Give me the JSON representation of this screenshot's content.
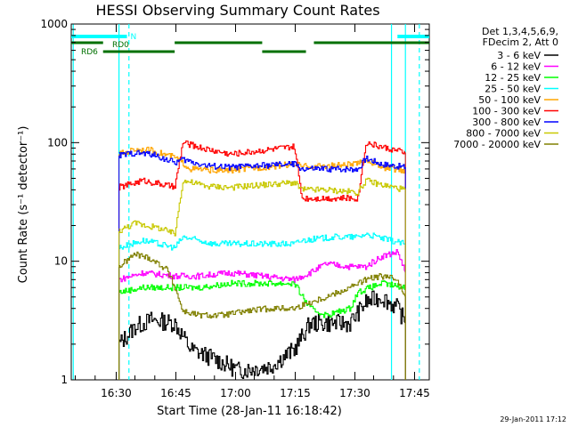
{
  "chart_data": {
    "type": "line",
    "title": "HESSI Observing Summary Count Rates",
    "xlabel": "Start Time (28-Jan-11 16:18:42)",
    "ylabel": "Count Rate (s⁻¹ detector⁻¹)",
    "yscale": "log",
    "ylim": [
      1,
      1000
    ],
    "xlim_minutes_from_start": [
      0,
      90
    ],
    "x_ticks": [
      {
        "label": "16:30",
        "minutes": 11.3
      },
      {
        "label": "16:45",
        "minutes": 26.3
      },
      {
        "label": "17:00",
        "minutes": 41.3
      },
      {
        "label": "17:15",
        "minutes": 56.3
      },
      {
        "label": "17:30",
        "minutes": 71.3
      },
      {
        "label": "17:45",
        "minutes": 86.3
      }
    ],
    "y_ticks": [
      {
        "label": "1",
        "value": 1
      },
      {
        "label": "10",
        "value": 10
      },
      {
        "label": "100",
        "value": 100
      },
      {
        "label": "1000",
        "value": 1000
      }
    ],
    "legend": {
      "header": [
        "Det 1,3,4,5,6,9,",
        "FDecim 2, Att 0"
      ],
      "placement": "right"
    },
    "series": [
      {
        "name": "3 - 6 keV",
        "color": "#000000",
        "segments": [
          [
            [
              12,
              2
            ],
            [
              16,
              2.8
            ],
            [
              20,
              3.2
            ],
            [
              26,
              3
            ],
            [
              30,
              1.8
            ],
            [
              36,
              1.5
            ],
            [
              42,
              1.2
            ],
            [
              50,
              1.3
            ],
            [
              56,
              1.8
            ],
            [
              60,
              3
            ],
            [
              64,
              3
            ],
            [
              70,
              3
            ],
            [
              74,
              4.5
            ],
            [
              78,
              5
            ],
            [
              82,
              4
            ],
            [
              84,
              3
            ]
          ]
        ]
      },
      {
        "name": "6 - 12 keV",
        "color": "#ff00ff",
        "segments": [
          [
            [
              12,
              7
            ],
            [
              18,
              8
            ],
            [
              26,
              7.5
            ],
            [
              32,
              7.5
            ],
            [
              40,
              8
            ],
            [
              48,
              7.5
            ],
            [
              56,
              7
            ],
            [
              60,
              8
            ],
            [
              64,
              9.5
            ],
            [
              70,
              9
            ],
            [
              74,
              9
            ],
            [
              78,
              11
            ],
            [
              82,
              12
            ],
            [
              84,
              8
            ]
          ]
        ]
      },
      {
        "name": "12 - 25 keV",
        "color": "#00ff00",
        "segments": [
          [
            [
              12,
              5.5
            ],
            [
              18,
              6
            ],
            [
              26,
              6
            ],
            [
              32,
              6
            ],
            [
              40,
              6.5
            ],
            [
              48,
              6.5
            ],
            [
              56,
              6.5
            ],
            [
              60,
              4
            ],
            [
              64,
              3.5
            ],
            [
              70,
              4
            ],
            [
              72,
              5.5
            ],
            [
              78,
              6.5
            ],
            [
              84,
              6
            ]
          ]
        ]
      },
      {
        "name": "25 - 50 keV",
        "color": "#00ffff",
        "segments": [
          [
            [
              12,
              13
            ],
            [
              18,
              15
            ],
            [
              26,
              13
            ],
            [
              28,
              16
            ],
            [
              36,
              14
            ],
            [
              44,
              14
            ],
            [
              56,
              14
            ],
            [
              58,
              15
            ],
            [
              66,
              16
            ],
            [
              72,
              16
            ],
            [
              74,
              17
            ],
            [
              80,
              15
            ],
            [
              84,
              14
            ]
          ]
        ]
      },
      {
        "name": "50 - 100 keV",
        "color": "#ffa500",
        "segments": [
          [
            [
              12,
              80
            ],
            [
              16,
              88
            ],
            [
              20,
              86
            ],
            [
              26,
              75
            ],
            [
              30,
              60
            ],
            [
              38,
              58
            ],
            [
              44,
              60
            ],
            [
              56,
              66
            ],
            [
              58,
              63
            ],
            [
              66,
              64
            ],
            [
              72,
              66
            ],
            [
              74,
              72
            ],
            [
              78,
              62
            ],
            [
              84,
              58
            ]
          ]
        ]
      },
      {
        "name": "100 - 300 keV",
        "color": "#ff0000",
        "segments": [
          [
            [
              12,
              42
            ],
            [
              18,
              48
            ],
            [
              22,
              45
            ],
            [
              26,
              42
            ],
            [
              28,
              100
            ],
            [
              34,
              88
            ],
            [
              40,
              80
            ],
            [
              48,
              86
            ],
            [
              56,
              92
            ],
            [
              58,
              34
            ],
            [
              64,
              34
            ],
            [
              72,
              34
            ],
            [
              74,
              100
            ],
            [
              78,
              92
            ],
            [
              84,
              82
            ]
          ]
        ]
      },
      {
        "name": "300 - 800 keV",
        "color": "#0000ff",
        "segments": [
          [
            [
              12,
              78
            ],
            [
              16,
              82
            ],
            [
              20,
              80
            ],
            [
              26,
              68
            ],
            [
              28,
              72
            ],
            [
              34,
              64
            ],
            [
              40,
              62
            ],
            [
              48,
              64
            ],
            [
              56,
              66
            ],
            [
              58,
              60
            ],
            [
              64,
              60
            ],
            [
              72,
              60
            ],
            [
              74,
              74
            ],
            [
              78,
              66
            ],
            [
              84,
              62
            ]
          ]
        ]
      },
      {
        "name": "800 - 7000 keV",
        "color": "#c8c800",
        "segments": [
          [
            [
              12,
              18
            ],
            [
              16,
              21
            ],
            [
              22,
              19
            ],
            [
              26,
              17
            ],
            [
              28,
              48
            ],
            [
              34,
              43
            ],
            [
              40,
              42
            ],
            [
              48,
              44
            ],
            [
              56,
              46
            ],
            [
              58,
              40
            ],
            [
              64,
              40
            ],
            [
              72,
              38
            ],
            [
              74,
              48
            ],
            [
              78,
              44
            ],
            [
              84,
              40
            ]
          ]
        ]
      },
      {
        "name": "7000 - 20000 keV",
        "color": "#808000",
        "segments": [
          [
            [
              12,
              9
            ],
            [
              16,
              11.5
            ],
            [
              20,
              10.5
            ],
            [
              24,
              8.5
            ],
            [
              26,
              6
            ],
            [
              28,
              3.8
            ],
            [
              32,
              3.5
            ],
            [
              38,
              3.5
            ],
            [
              44,
              3.8
            ],
            [
              50,
              4
            ],
            [
              56,
              4
            ],
            [
              60,
              4.5
            ],
            [
              64,
              5
            ],
            [
              70,
              6
            ],
            [
              74,
              7
            ],
            [
              78,
              7.5
            ],
            [
              82,
              7
            ],
            [
              84,
              5
            ]
          ]
        ]
      }
    ],
    "annotations": {
      "night_bar": {
        "label": "N",
        "color": "#00ffff",
        "intervals": [
          [
            0,
            14
          ],
          [
            82,
            90
          ]
        ]
      },
      "rd0": {
        "label": "RD0",
        "color": "#007000",
        "intervals": [
          [
            0,
            8
          ],
          [
            26,
            48
          ],
          [
            61,
            90
          ]
        ]
      },
      "rd6": {
        "label": "RD6",
        "color": "#007000",
        "intervals": [
          [
            8,
            26
          ],
          [
            48,
            59
          ]
        ]
      },
      "solid_vlines": {
        "color": "#00ffff",
        "minutes": [
          0.5,
          12,
          80.5,
          84
        ]
      },
      "dashed_vlines": {
        "color": "#00ffff",
        "minutes": [
          14.5,
          87.5
        ]
      }
    }
  },
  "footer": {
    "timestamp": "29-Jan-2011 17:12"
  }
}
